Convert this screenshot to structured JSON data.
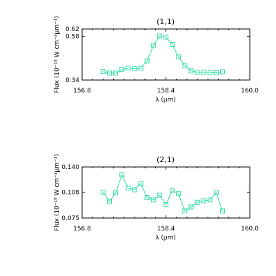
{
  "chart_data": [
    {
      "type": "line",
      "title": "(1,1)",
      "xlabel": "λ (μm)",
      "ylabel": "Flux (10⁻¹⁸ W cm⁻²μm⁻¹)",
      "xlim": [
        156.8,
        160.0
      ],
      "ylim": [
        0.34,
        0.62
      ],
      "xticks": [
        156.8,
        158.4,
        160.0
      ],
      "xtick_labels": [
        "156.8",
        "158.4",
        "160.0"
      ],
      "yticks": [
        0.34,
        0.58,
        0.62
      ],
      "ytick_labels": [
        "0.34",
        "0.58",
        "0.62"
      ],
      "series": [
        {
          "color": "#33dba9",
          "marker": "square",
          "x": [
            157.2,
            157.32,
            157.44,
            157.56,
            157.68,
            157.8,
            157.92,
            158.04,
            158.16,
            158.28,
            158.4,
            158.52,
            158.64,
            158.76,
            158.88,
            159.0,
            159.12,
            159.24,
            159.36,
            159.48
          ],
          "y": [
            0.387,
            0.378,
            0.378,
            0.398,
            0.405,
            0.402,
            0.405,
            0.445,
            0.53,
            0.582,
            0.575,
            0.535,
            0.468,
            0.418,
            0.39,
            0.382,
            0.382,
            0.38,
            0.38,
            0.385
          ]
        }
      ],
      "grid": false,
      "legend": "none"
    },
    {
      "type": "line",
      "title": "(2,1)",
      "xlabel": "λ (μm)",
      "ylabel": "Flux (10⁻¹⁸ W cm⁻²μm⁻¹)",
      "xlim": [
        156.8,
        160.0
      ],
      "ylim": [
        0.075,
        0.14
      ],
      "xticks": [
        156.8,
        158.4,
        160.0
      ],
      "xtick_labels": [
        "156.8",
        "158.4",
        "160.0"
      ],
      "yticks": [
        0.075,
        0.108,
        0.14
      ],
      "ytick_labels": [
        "0.075",
        "0.108",
        "0.140"
      ],
      "series": [
        {
          "color": "#33dba9",
          "marker": "square",
          "x": [
            157.2,
            157.32,
            157.44,
            157.56,
            157.68,
            157.8,
            157.92,
            158.04,
            158.16,
            158.28,
            158.4,
            158.52,
            158.64,
            158.76,
            158.88,
            159.0,
            159.12,
            159.24,
            159.36,
            159.48
          ],
          "y": [
            0.108,
            0.096,
            0.107,
            0.13,
            0.113,
            0.111,
            0.119,
            0.101,
            0.098,
            0.104,
            0.092,
            0.11,
            0.106,
            0.084,
            0.089,
            0.095,
            0.097,
            0.098,
            0.107,
            0.084
          ]
        }
      ],
      "grid": false,
      "legend": "none"
    }
  ]
}
